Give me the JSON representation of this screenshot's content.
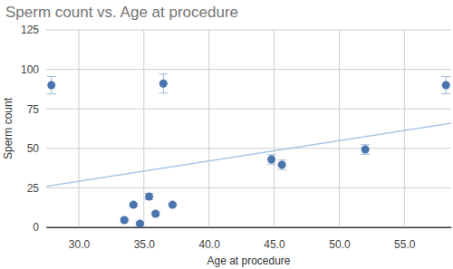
{
  "chart_data": {
    "type": "scatter",
    "title": "Sperm count vs. Age at procedure",
    "x_label": "Age at procedure",
    "y_label": "Sperm count",
    "x": [
      27.9,
      36.5,
      33.5,
      34.2,
      34.7,
      35.4,
      35.9,
      37.2,
      44.8,
      45.6,
      52.0,
      58.2
    ],
    "values": [
      90,
      91,
      4.6,
      14.3,
      2.3,
      19.5,
      8.6,
      14.3,
      43,
      39.6,
      49.3,
      90
    ],
    "errors": [
      5.5,
      6,
      1,
      1,
      1,
      2,
      1,
      1,
      3,
      3,
      3,
      5.5
    ],
    "trendline": {
      "x": [
        27.5,
        58.6
      ],
      "values": [
        26,
        66
      ],
      "color": "#a9c8e8"
    },
    "color": "#4a74ad",
    "xlim": [
      27.5,
      58.6
    ],
    "xticks": [
      {
        "value": 30,
        "label": "30.0"
      },
      {
        "value": 35,
        "label": "35.0"
      },
      {
        "value": 40,
        "label": "40.0"
      },
      {
        "value": 45,
        "label": "45.0"
      },
      {
        "value": 50,
        "label": "50.0"
      },
      {
        "value": 55,
        "label": "55.0"
      }
    ],
    "ylim": [
      0,
      125
    ],
    "yticks": [
      0,
      25,
      50,
      75,
      100,
      125
    ],
    "grid": true
  }
}
